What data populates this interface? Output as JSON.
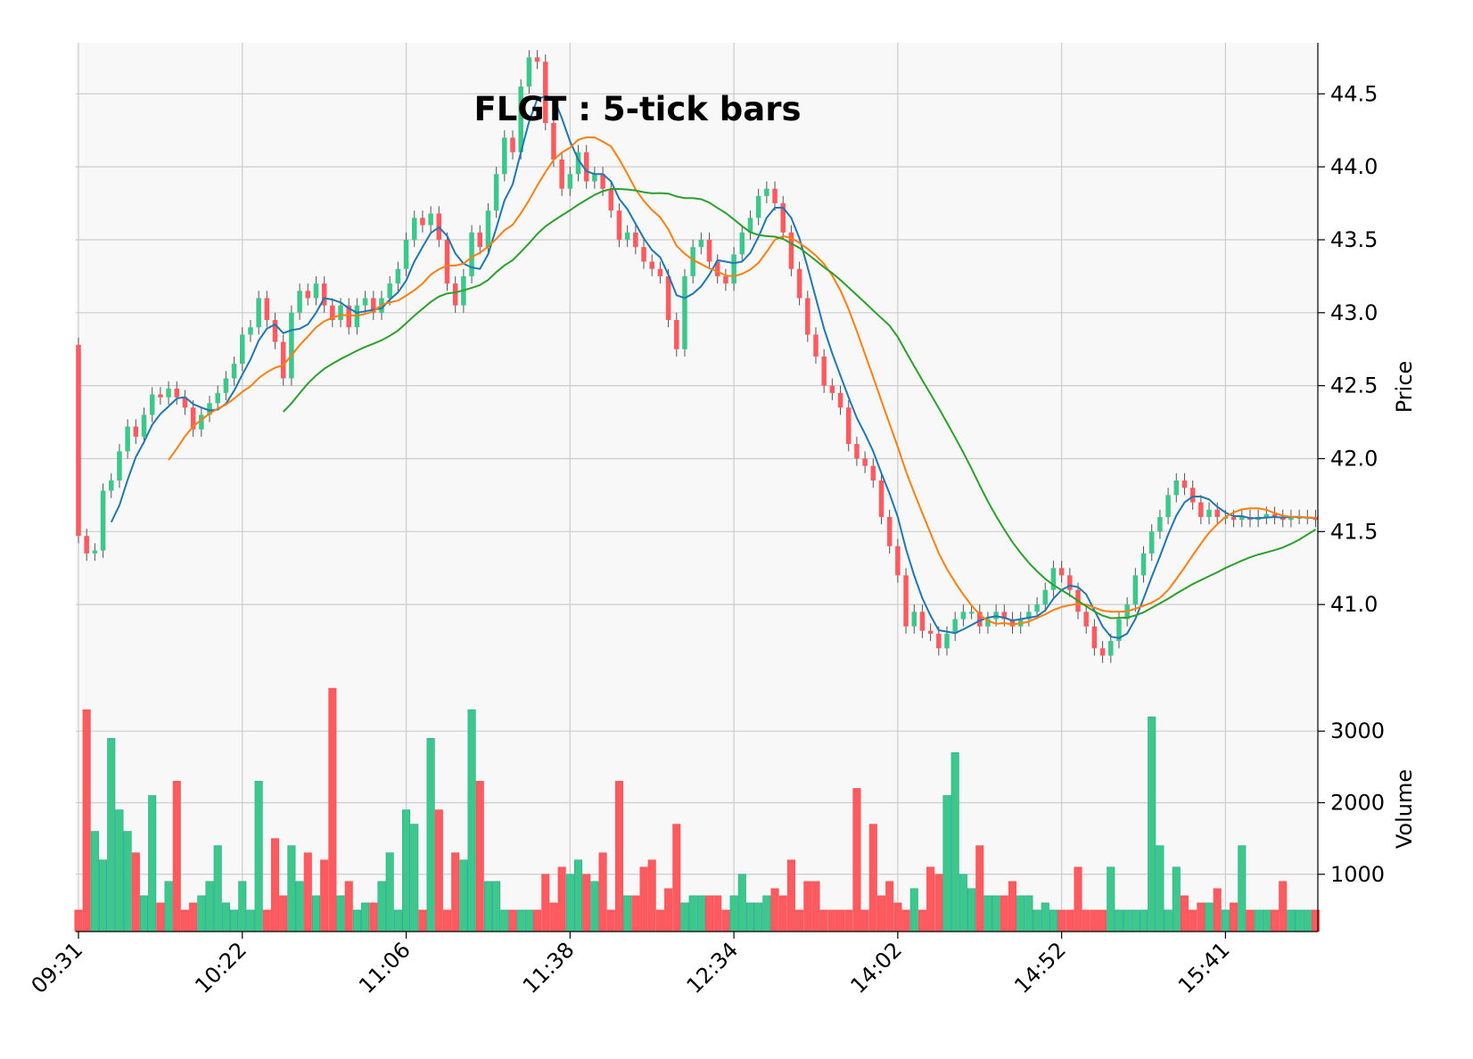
{
  "chart_data": {
    "type": "candlestick",
    "title": "FLGT : 5-tick bars",
    "price_panel": {
      "ylabel": "Price",
      "ylim": [
        40.5,
        44.85
      ],
      "yticks": [
        41.0,
        41.5,
        42.0,
        42.5,
        43.0,
        43.5,
        44.0,
        44.5
      ],
      "ytick_labels": [
        "41.0",
        "41.5",
        "42.0",
        "42.5",
        "43.0",
        "43.5",
        "44.0",
        "44.5"
      ]
    },
    "volume_panel": {
      "ylabel": "Volume",
      "ylim": [
        200,
        3750
      ],
      "yticks": [
        1000,
        2000,
        3000
      ],
      "ytick_labels": [
        "1000",
        "2000",
        "3000"
      ]
    },
    "xtick_labels": [
      {
        "bar": 0,
        "label": "09:31"
      },
      {
        "bar": 20,
        "label": "10:22"
      },
      {
        "bar": 40,
        "label": "11:06"
      },
      {
        "bar": 60,
        "label": "11:38"
      },
      {
        "bar": 80,
        "label": "12:34"
      },
      {
        "bar": 100,
        "label": "14:02"
      },
      {
        "bar": 120,
        "label": "14:52"
      },
      {
        "bar": 140,
        "label": "15:41"
      }
    ],
    "bar_count": 152,
    "colors": {
      "up": "#26a69a",
      "up_fill": "#3cc88a",
      "down": "#ef5350",
      "down_fill": "#ff5a5f",
      "ma_short": "#1f77b4",
      "ma_mid": "#ff7f0e",
      "ma_long": "#2ca02c",
      "grid": "#cccccc",
      "panel_bg": "#f8f8f8"
    },
    "grid": true,
    "moving_averages": [
      {
        "window": 5,
        "color": "#1f77b4"
      },
      {
        "window": 12,
        "color": "#ff7f0e"
      },
      {
        "window": 26,
        "color": "#2ca02c"
      }
    ],
    "close_anchors": [
      [
        0,
        41.47
      ],
      [
        1,
        41.35
      ],
      [
        2,
        41.37
      ],
      [
        3,
        41.78
      ],
      [
        4,
        41.85
      ],
      [
        5,
        42.05
      ],
      [
        6,
        42.22
      ],
      [
        7,
        42.15
      ],
      [
        8,
        42.3
      ],
      [
        9,
        42.44
      ],
      [
        10,
        42.42
      ],
      [
        11,
        42.48
      ],
      [
        12,
        42.42
      ],
      [
        13,
        42.35
      ],
      [
        14,
        42.2
      ],
      [
        15,
        42.3
      ],
      [
        16,
        42.38
      ],
      [
        17,
        42.45
      ],
      [
        18,
        42.55
      ],
      [
        19,
        42.65
      ],
      [
        20,
        42.85
      ],
      [
        21,
        42.9
      ],
      [
        22,
        43.1
      ],
      [
        23,
        42.95
      ],
      [
        24,
        42.8
      ],
      [
        25,
        42.55
      ],
      [
        26,
        43.0
      ],
      [
        27,
        43.15
      ],
      [
        28,
        43.1
      ],
      [
        29,
        43.2
      ],
      [
        30,
        43.05
      ],
      [
        31,
        42.95
      ],
      [
        32,
        43.05
      ],
      [
        33,
        42.9
      ],
      [
        34,
        43.05
      ],
      [
        35,
        43.1
      ],
      [
        36,
        43.0
      ],
      [
        37,
        43.1
      ],
      [
        38,
        43.2
      ],
      [
        39,
        43.3
      ],
      [
        40,
        43.5
      ],
      [
        41,
        43.65
      ],
      [
        42,
        43.6
      ],
      [
        43,
        43.68
      ],
      [
        44,
        43.5
      ],
      [
        45,
        43.2
      ],
      [
        46,
        43.05
      ],
      [
        47,
        43.25
      ],
      [
        48,
        43.55
      ],
      [
        49,
        43.45
      ],
      [
        50,
        43.7
      ],
      [
        51,
        43.95
      ],
      [
        52,
        44.2
      ],
      [
        53,
        44.1
      ],
      [
        54,
        44.55
      ],
      [
        55,
        44.75
      ],
      [
        56,
        44.72
      ],
      [
        57,
        44.3
      ],
      [
        58,
        44.05
      ],
      [
        59,
        43.85
      ],
      [
        60,
        43.95
      ],
      [
        61,
        44.1
      ],
      [
        62,
        43.9
      ],
      [
        63,
        43.95
      ],
      [
        64,
        43.85
      ],
      [
        65,
        43.7
      ],
      [
        66,
        43.5
      ],
      [
        67,
        43.55
      ],
      [
        68,
        43.45
      ],
      [
        69,
        43.35
      ],
      [
        70,
        43.3
      ],
      [
        71,
        43.25
      ],
      [
        72,
        42.95
      ],
      [
        73,
        42.75
      ],
      [
        74,
        43.25
      ],
      [
        75,
        43.45
      ],
      [
        76,
        43.5
      ],
      [
        77,
        43.35
      ],
      [
        78,
        43.25
      ],
      [
        79,
        43.2
      ],
      [
        80,
        43.4
      ],
      [
        81,
        43.55
      ],
      [
        82,
        43.65
      ],
      [
        83,
        43.8
      ],
      [
        84,
        43.85
      ],
      [
        85,
        43.75
      ],
      [
        86,
        43.55
      ],
      [
        87,
        43.3
      ],
      [
        88,
        43.1
      ],
      [
        89,
        42.85
      ],
      [
        90,
        42.7
      ],
      [
        91,
        42.5
      ],
      [
        92,
        42.45
      ],
      [
        93,
        42.35
      ],
      [
        94,
        42.1
      ],
      [
        95,
        42.0
      ],
      [
        96,
        41.95
      ],
      [
        97,
        41.85
      ],
      [
        98,
        41.6
      ],
      [
        99,
        41.4
      ],
      [
        100,
        41.2
      ],
      [
        101,
        40.85
      ],
      [
        102,
        40.95
      ],
      [
        103,
        40.82
      ],
      [
        104,
        40.8
      ],
      [
        105,
        40.7
      ],
      [
        106,
        40.8
      ],
      [
        107,
        40.9
      ],
      [
        108,
        40.95
      ],
      [
        109,
        40.95
      ],
      [
        110,
        40.85
      ],
      [
        111,
        40.9
      ],
      [
        112,
        40.95
      ],
      [
        113,
        40.9
      ],
      [
        114,
        40.85
      ],
      [
        115,
        40.9
      ],
      [
        116,
        40.95
      ],
      [
        117,
        41.0
      ],
      [
        118,
        41.1
      ],
      [
        119,
        41.25
      ],
      [
        120,
        41.2
      ],
      [
        121,
        41.1
      ],
      [
        122,
        40.95
      ],
      [
        123,
        40.85
      ],
      [
        124,
        40.7
      ],
      [
        125,
        40.65
      ],
      [
        126,
        40.75
      ],
      [
        127,
        40.9
      ],
      [
        128,
        41.0
      ],
      [
        129,
        41.2
      ],
      [
        130,
        41.35
      ],
      [
        131,
        41.5
      ],
      [
        132,
        41.6
      ],
      [
        133,
        41.75
      ],
      [
        134,
        41.85
      ],
      [
        135,
        41.8
      ],
      [
        136,
        41.7
      ],
      [
        137,
        41.6
      ],
      [
        138,
        41.65
      ],
      [
        139,
        41.6
      ],
      [
        140,
        41.6
      ],
      [
        141,
        41.58
      ],
      [
        142,
        41.6
      ],
      [
        143,
        41.58
      ],
      [
        144,
        41.6
      ],
      [
        145,
        41.62
      ],
      [
        146,
        41.6
      ],
      [
        147,
        41.58
      ],
      [
        148,
        41.6
      ],
      [
        149,
        41.6
      ],
      [
        150,
        41.6
      ],
      [
        151,
        41.58
      ]
    ],
    "volume_anchors": [
      [
        0,
        500
      ],
      [
        1,
        3300
      ],
      [
        2,
        1600
      ],
      [
        3,
        1200
      ],
      [
        4,
        2900
      ],
      [
        5,
        1900
      ],
      [
        6,
        1600
      ],
      [
        7,
        1300
      ],
      [
        8,
        700
      ],
      [
        9,
        2100
      ],
      [
        10,
        600
      ],
      [
        11,
        900
      ],
      [
        12,
        2300
      ],
      [
        13,
        500
      ],
      [
        14,
        600
      ],
      [
        15,
        700
      ],
      [
        16,
        900
      ],
      [
        17,
        1400
      ],
      [
        18,
        600
      ],
      [
        19,
        500
      ],
      [
        20,
        900
      ],
      [
        21,
        500
      ],
      [
        22,
        2300
      ],
      [
        23,
        500
      ],
      [
        24,
        1500
      ],
      [
        25,
        700
      ],
      [
        26,
        1400
      ],
      [
        27,
        900
      ],
      [
        28,
        1300
      ],
      [
        29,
        700
      ],
      [
        30,
        1200
      ],
      [
        31,
        3600
      ],
      [
        32,
        700
      ],
      [
        33,
        900
      ],
      [
        34,
        500
      ],
      [
        35,
        600
      ],
      [
        36,
        600
      ],
      [
        37,
        900
      ],
      [
        38,
        1300
      ],
      [
        39,
        500
      ],
      [
        40,
        1900
      ],
      [
        41,
        1700
      ],
      [
        42,
        500
      ],
      [
        43,
        2900
      ],
      [
        44,
        1900
      ],
      [
        45,
        500
      ],
      [
        46,
        1300
      ],
      [
        47,
        1200
      ],
      [
        48,
        3300
      ],
      [
        49,
        2300
      ],
      [
        50,
        900
      ],
      [
        51,
        900
      ],
      [
        52,
        500
      ],
      [
        53,
        500
      ],
      [
        54,
        500
      ],
      [
        55,
        500
      ],
      [
        56,
        500
      ],
      [
        57,
        1000
      ],
      [
        58,
        600
      ],
      [
        59,
        1100
      ],
      [
        60,
        1000
      ],
      [
        61,
        1200
      ],
      [
        62,
        1000
      ],
      [
        63,
        900
      ],
      [
        64,
        1300
      ],
      [
        65,
        500
      ],
      [
        66,
        2300
      ],
      [
        67,
        700
      ],
      [
        68,
        700
      ],
      [
        69,
        1100
      ],
      [
        70,
        1200
      ],
      [
        71,
        500
      ],
      [
        72,
        800
      ],
      [
        73,
        1700
      ],
      [
        74,
        600
      ],
      [
        75,
        700
      ],
      [
        76,
        700
      ],
      [
        77,
        700
      ],
      [
        78,
        700
      ],
      [
        79,
        500
      ],
      [
        80,
        700
      ],
      [
        81,
        1000
      ],
      [
        82,
        600
      ],
      [
        83,
        600
      ],
      [
        84,
        700
      ],
      [
        85,
        800
      ],
      [
        86,
        700
      ],
      [
        87,
        1200
      ],
      [
        88,
        500
      ],
      [
        89,
        900
      ],
      [
        90,
        900
      ],
      [
        91,
        500
      ],
      [
        92,
        500
      ],
      [
        93,
        500
      ],
      [
        94,
        500
      ],
      [
        95,
        2200
      ],
      [
        96,
        500
      ],
      [
        97,
        1700
      ],
      [
        98,
        700
      ],
      [
        99,
        900
      ],
      [
        100,
        600
      ],
      [
        101,
        500
      ],
      [
        102,
        800
      ],
      [
        103,
        500
      ],
      [
        104,
        1100
      ],
      [
        105,
        1000
      ],
      [
        106,
        2100
      ],
      [
        107,
        2700
      ],
      [
        108,
        1000
      ],
      [
        109,
        800
      ],
      [
        110,
        1400
      ],
      [
        111,
        700
      ],
      [
        112,
        700
      ],
      [
        113,
        700
      ],
      [
        114,
        900
      ],
      [
        115,
        700
      ],
      [
        116,
        700
      ],
      [
        117,
        500
      ],
      [
        118,
        600
      ],
      [
        119,
        500
      ],
      [
        120,
        500
      ],
      [
        121,
        500
      ],
      [
        122,
        1100
      ],
      [
        123,
        500
      ],
      [
        124,
        500
      ],
      [
        125,
        500
      ],
      [
        126,
        1100
      ],
      [
        127,
        500
      ],
      [
        128,
        500
      ],
      [
        129,
        500
      ],
      [
        130,
        500
      ],
      [
        131,
        3200
      ],
      [
        132,
        1400
      ],
      [
        133,
        500
      ],
      [
        134,
        1100
      ],
      [
        135,
        700
      ],
      [
        136,
        500
      ],
      [
        137,
        600
      ],
      [
        138,
        600
      ],
      [
        139,
        800
      ],
      [
        140,
        500
      ],
      [
        141,
        600
      ],
      [
        142,
        1400
      ],
      [
        143,
        500
      ],
      [
        144,
        500
      ],
      [
        145,
        500
      ],
      [
        146,
        500
      ],
      [
        147,
        900
      ],
      [
        148,
        500
      ],
      [
        149,
        500
      ],
      [
        150,
        500
      ],
      [
        151,
        500
      ]
    ]
  }
}
